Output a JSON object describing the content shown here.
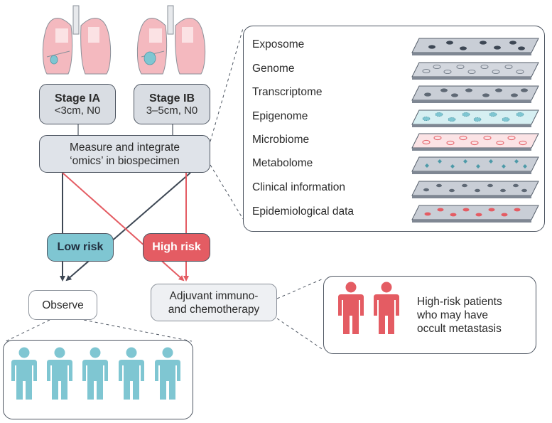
{
  "stages": [
    {
      "title": "Stage IA",
      "detail": "<3cm, N0"
    },
    {
      "title": "Stage IB",
      "detail": "3–5cm, N0"
    }
  ],
  "measure": {
    "line1": "Measure and integrate",
    "line2": "‘omics’ in biospecimen"
  },
  "omics": [
    "Exposome",
    "Genome",
    "Transcriptome",
    "Epigenome",
    "Microbiome",
    "Metabolome",
    "Clinical information",
    "Epidemiological data"
  ],
  "risk": {
    "low": "Low risk",
    "high": "High risk"
  },
  "outcomes": {
    "observe": "Observe",
    "adjuvant_line1": "Adjuvant immuno-",
    "adjuvant_line2": "and chemotherapy"
  },
  "high_risk_note": {
    "line1": "High-risk patients",
    "line2": "who may have",
    "line3": "occult metastasis"
  },
  "colors": {
    "teal": "#7fc6d2",
    "red": "#e45c63",
    "dark": "#3d4754",
    "pink": "#f4b9bf"
  }
}
